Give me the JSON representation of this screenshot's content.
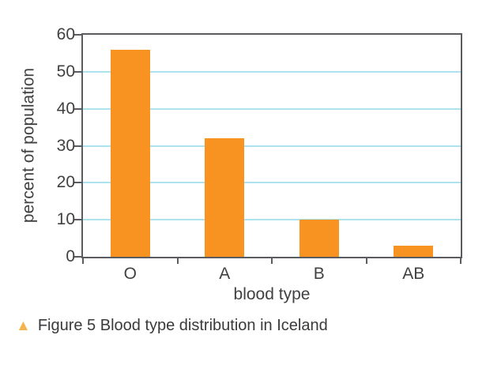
{
  "chart_data": {
    "type": "bar",
    "categories": [
      "O",
      "A",
      "B",
      "AB"
    ],
    "values": [
      56,
      32,
      10,
      3
    ],
    "xlabel": "blood type",
    "ylabel": "percent of population",
    "ylim": [
      0,
      60
    ],
    "yticks": [
      0,
      10,
      20,
      30,
      40,
      50,
      60
    ],
    "grid": true,
    "gridlines_at": [
      10,
      20,
      30,
      40,
      50
    ],
    "legend": false,
    "colors": {
      "bar": "#F89321",
      "gridline": "#ADE3EF",
      "axis": "#5B5C5F",
      "text": "#414042",
      "caption_marker": "#F2B44E",
      "caption_text": "#3A3A3C",
      "background": "#FFFFFF"
    }
  },
  "figure": {
    "caption": {
      "marker": "▲",
      "text": "Figure 5 Blood type distribution in Iceland"
    }
  }
}
